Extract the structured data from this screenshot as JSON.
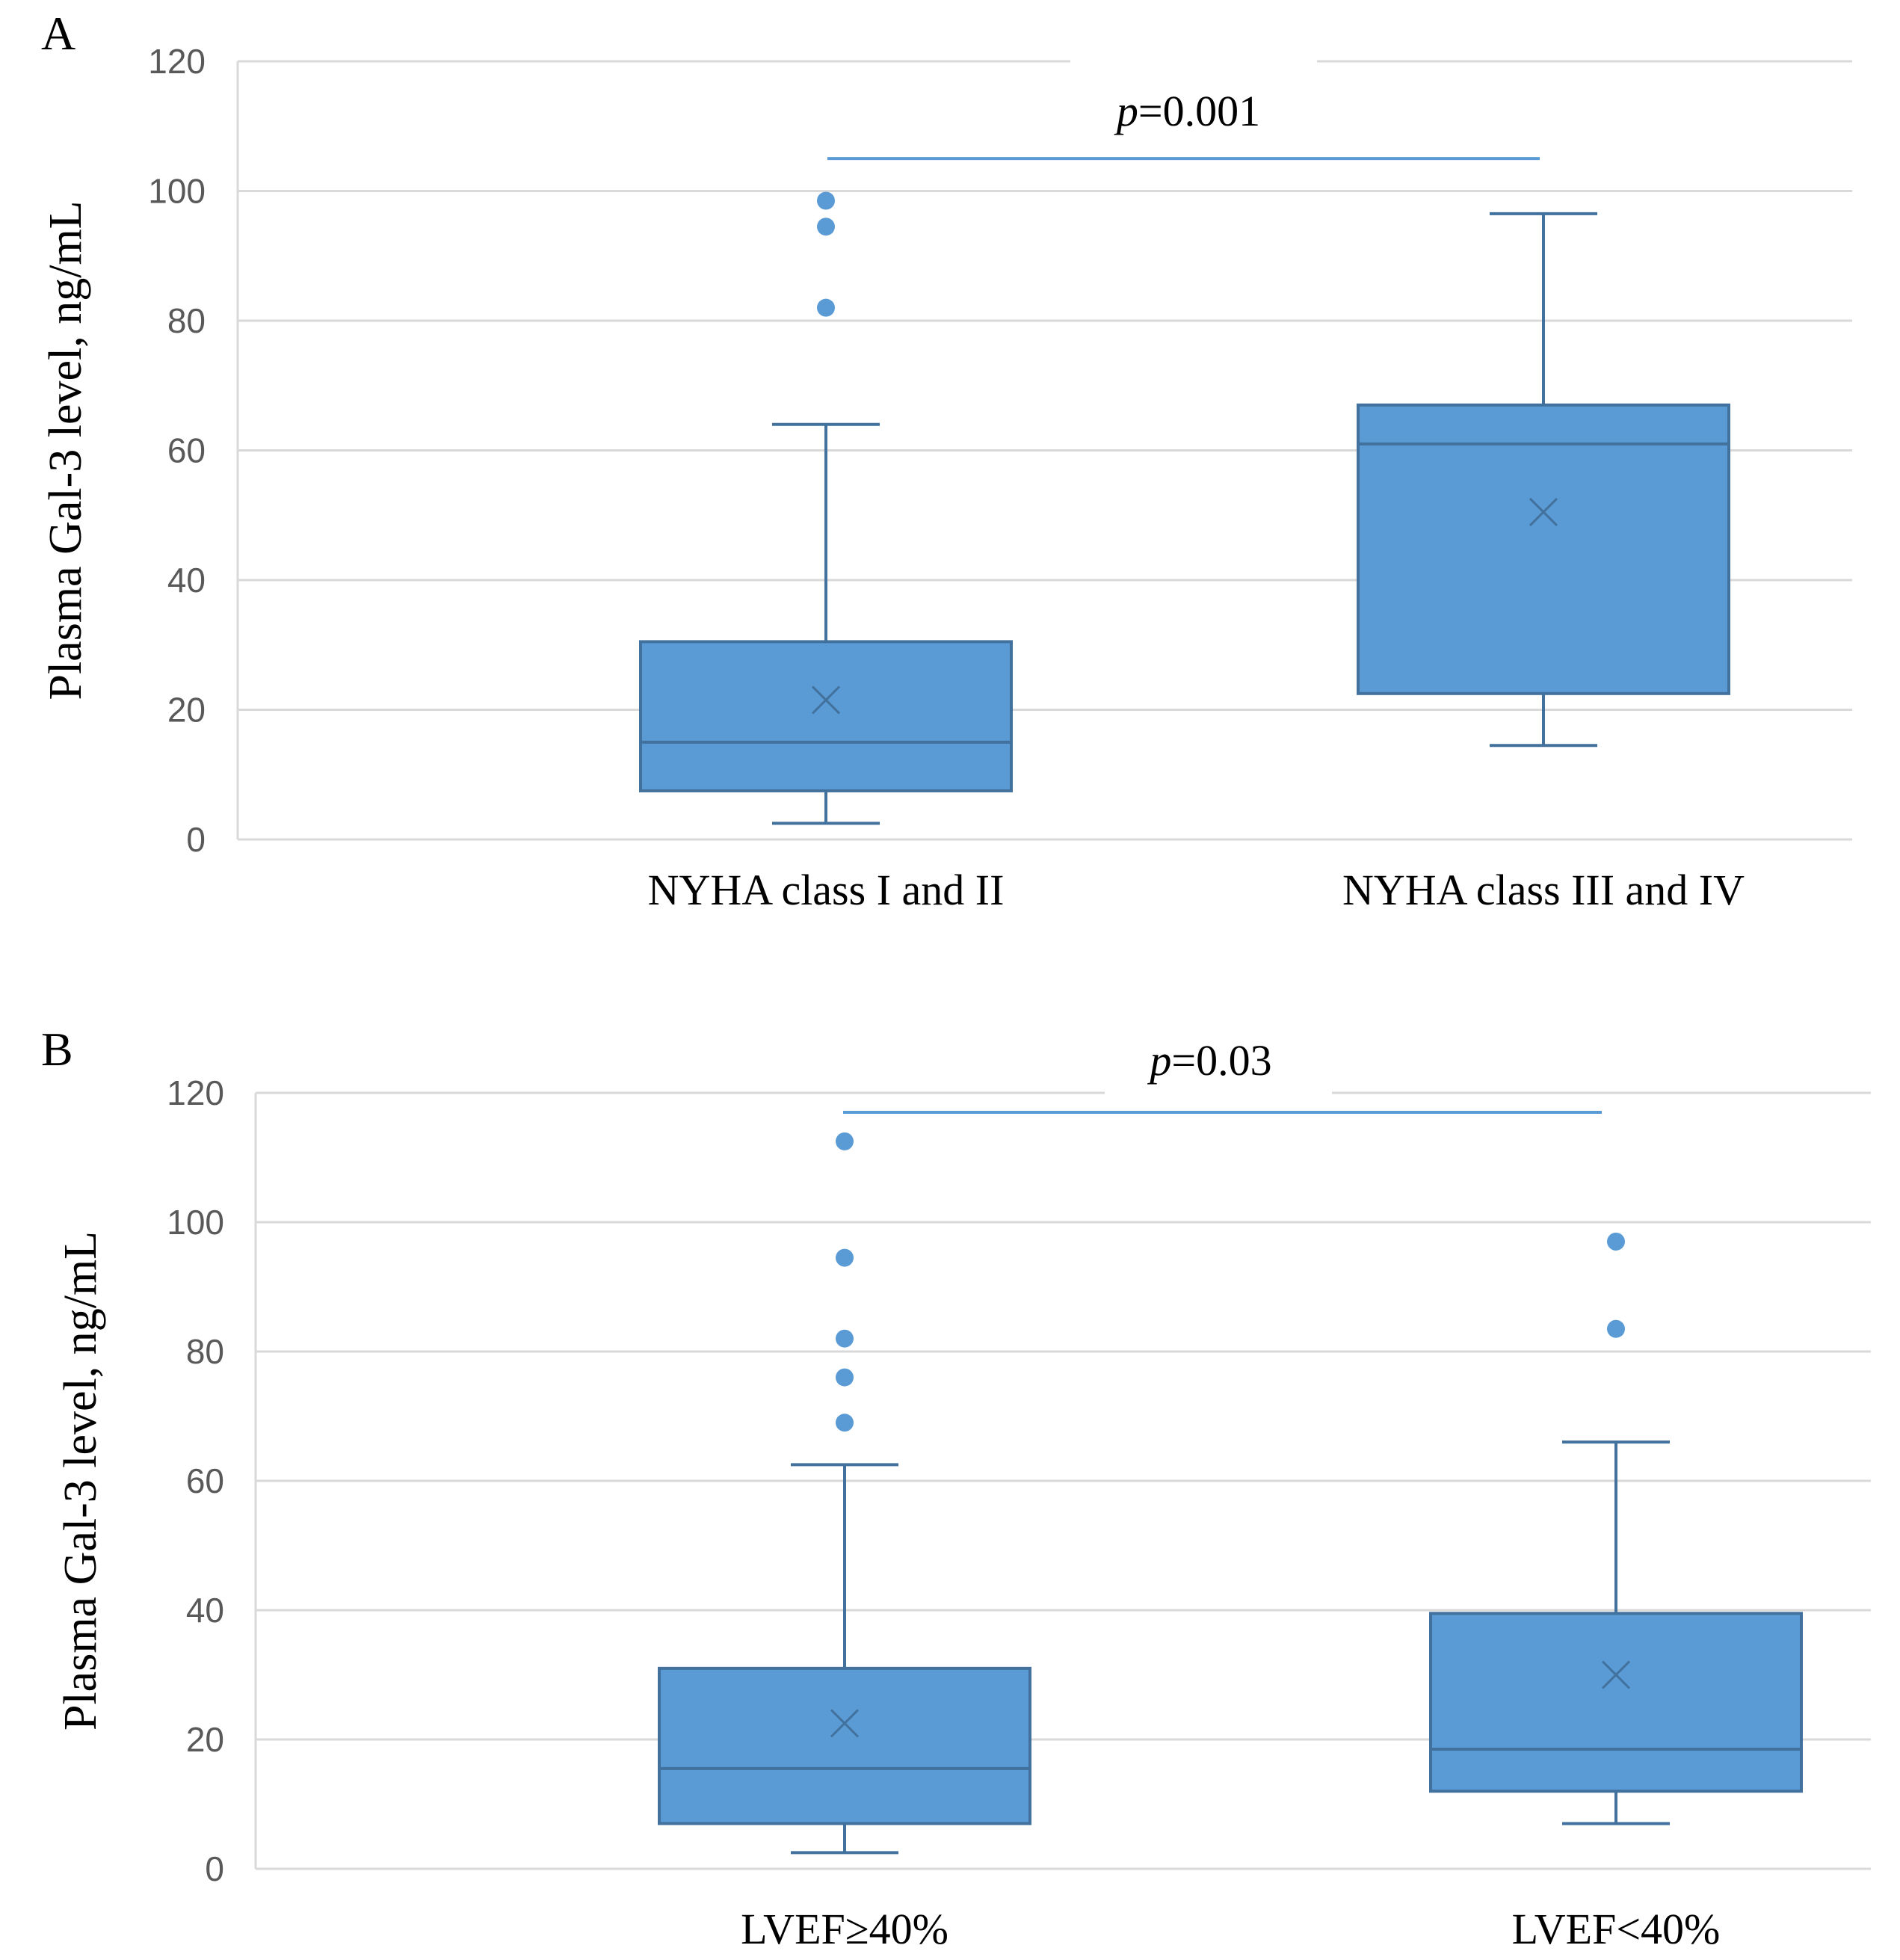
{
  "chart_data": [
    {
      "type": "box",
      "panel_label": "A",
      "ylabel": "Plasma Gal-3 level, ng/mL",
      "xlabel": "",
      "ylim": [
        0,
        120
      ],
      "yticks": [
        0,
        20,
        40,
        60,
        80,
        100,
        120
      ],
      "grid": true,
      "categories": [
        "NYHA class I and II",
        "NYHA class III and IV"
      ],
      "boxes": [
        {
          "category": "NYHA class I and II",
          "min": 2.5,
          "q1": 7.5,
          "median": 15,
          "q3": 30.5,
          "max": 64,
          "mean": 21.5,
          "outliers": [
            82,
            94.5,
            98.5
          ]
        },
        {
          "category": "NYHA class III and IV",
          "min": 14.5,
          "q1": 22.5,
          "median": 61,
          "q3": 67,
          "max": 96.5,
          "mean": 50.5,
          "outliers": []
        }
      ],
      "annotation": {
        "prefix": "p",
        "text": "=0.001",
        "bracket_value": 105
      },
      "color": "#5B9BD5",
      "edge_color": "#41719C"
    },
    {
      "type": "box",
      "panel_label": "B",
      "ylabel": "Plasma Gal-3 level, ng/mL",
      "xlabel": "",
      "ylim": [
        0,
        120
      ],
      "yticks": [
        0,
        20,
        40,
        60,
        80,
        100,
        120
      ],
      "grid": true,
      "categories": [
        "LVEF≥40%",
        "LVEF<40%"
      ],
      "boxes": [
        {
          "category": "LVEF≥40%",
          "min": 2.5,
          "q1": 7,
          "median": 15.5,
          "q3": 31,
          "max": 62.5,
          "mean": 22.5,
          "outliers": [
            69,
            76,
            82,
            94.5,
            112.5
          ]
        },
        {
          "category": "LVEF<40%",
          "min": 7,
          "q1": 12,
          "median": 18.5,
          "q3": 39.5,
          "max": 66,
          "mean": 30,
          "outliers": [
            83.5,
            97
          ]
        }
      ],
      "annotation": {
        "prefix": "p",
        "text": "=0.03",
        "bracket_value": 117
      },
      "color": "#5B9BD5",
      "edge_color": "#41719C"
    }
  ]
}
